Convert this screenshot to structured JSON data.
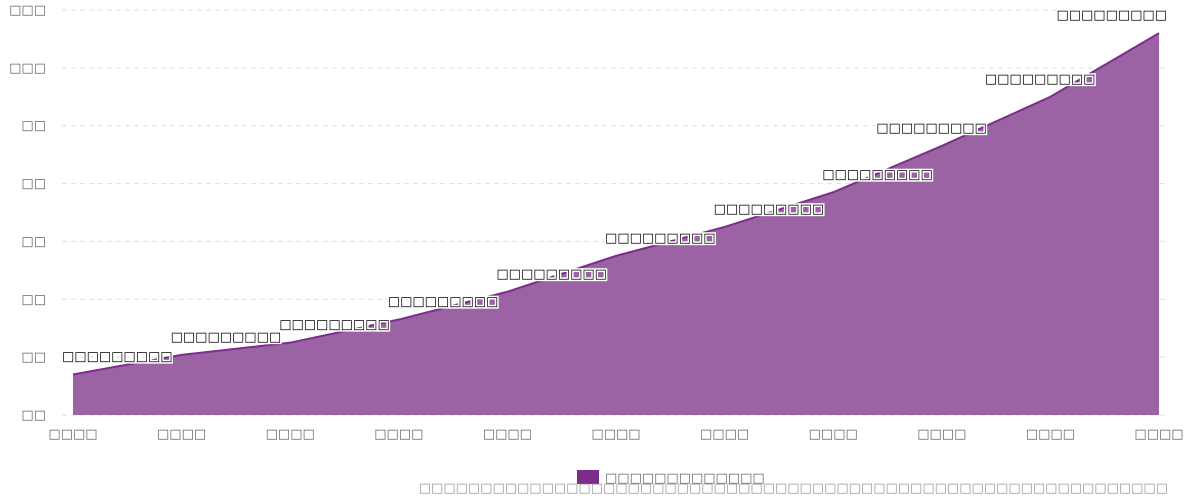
{
  "chart_data": {
    "type": "area",
    "title": "",
    "xlabel": "",
    "ylabel": "",
    "x": [
      "□□□□",
      "□□□□",
      "□□□□",
      "□□□□",
      "□□□□",
      "□□□□",
      "□□□□",
      "□□□□",
      "□□□□",
      "□□□□",
      "□□□□"
    ],
    "yticks": [
      "□□",
      "□□",
      "□□",
      "□□",
      "□□",
      "□□",
      "□□□",
      "□□□"
    ],
    "ylim": [
      0,
      7
    ],
    "grid": true,
    "legend_position": "bottom-center",
    "series": [
      {
        "name": "□□□□□□□□□□□□□",
        "color": "#7b2d8b",
        "fill": "#9b63a3",
        "values": [
          0.7,
          1.04,
          1.25,
          1.65,
          2.13,
          2.75,
          3.25,
          3.85,
          4.65,
          5.5,
          6.6
        ],
        "labels": [
          "□□□□□□□□□",
          "□□□□□□□□□",
          "□□□□□□□□□",
          "□□□□□□□□□",
          "□□□□□□□□□",
          "□□□□□□□□□",
          "□□□□□□□□□",
          "□□□□□□□□□",
          "□□□□□□□□□",
          "□□□□□□□□□",
          "□□□□□□□□□"
        ]
      }
    ],
    "source": "□□□□□□□□□□□□□□□□□□□□□□□□□□□□□□□□□□□□□□□□□□□□□□□□□□□□□□□□□□□□□"
  }
}
